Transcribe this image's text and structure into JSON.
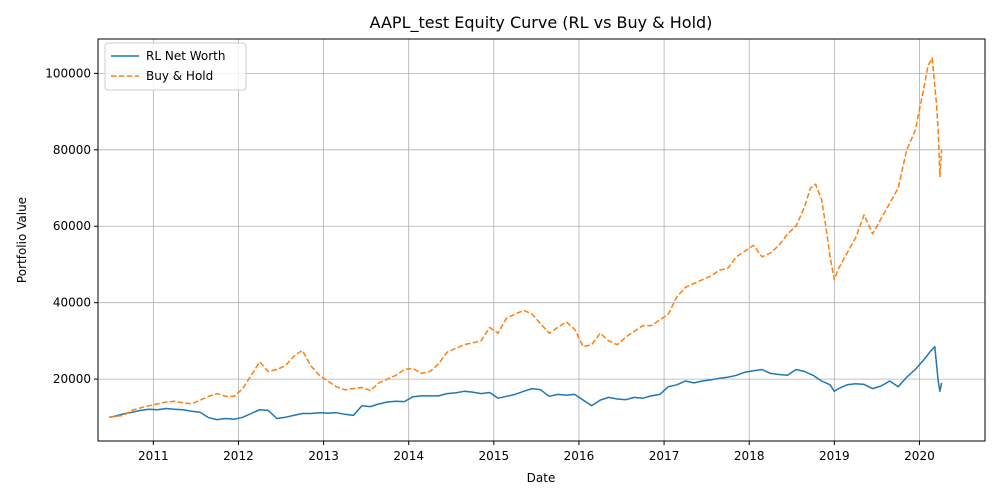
{
  "chart_data": {
    "type": "line",
    "title": "AAPL_test Equity Curve (RL vs Buy & Hold)",
    "xlabel": "Date",
    "ylabel": "Portfolio Value",
    "xlim": [
      2010.35,
      2020.77
    ],
    "ylim": [
      3800,
      109000
    ],
    "x_ticks": [
      2011,
      2012,
      2013,
      2014,
      2015,
      2016,
      2017,
      2018,
      2019,
      2020
    ],
    "x_tick_labels": [
      "2011",
      "2012",
      "2013",
      "2014",
      "2015",
      "2016",
      "2017",
      "2018",
      "2019",
      "2020"
    ],
    "y_ticks": [
      20000,
      40000,
      60000,
      80000,
      100000
    ],
    "y_tick_labels": [
      "20000",
      "40000",
      "60000",
      "80000",
      "100000"
    ],
    "grid": true,
    "legend_position": "top-left",
    "series": [
      {
        "name": "RL Net Worth",
        "color": "#1f77b4",
        "style": "solid",
        "x": [
          2010.48,
          2010.55,
          2010.65,
          2010.75,
          2010.85,
          2010.95,
          2011.05,
          2011.15,
          2011.25,
          2011.35,
          2011.45,
          2011.55,
          2011.65,
          2011.75,
          2011.85,
          2011.95,
          2012.05,
          2012.15,
          2012.25,
          2012.35,
          2012.45,
          2012.55,
          2012.65,
          2012.75,
          2012.85,
          2012.95,
          2013.05,
          2013.15,
          2013.25,
          2013.35,
          2013.45,
          2013.55,
          2013.65,
          2013.75,
          2013.85,
          2013.95,
          2014.05,
          2014.15,
          2014.25,
          2014.35,
          2014.45,
          2014.55,
          2014.65,
          2014.75,
          2014.85,
          2014.95,
          2015.05,
          2015.15,
          2015.25,
          2015.35,
          2015.45,
          2015.55,
          2015.65,
          2015.75,
          2015.85,
          2015.95,
          2016.05,
          2016.15,
          2016.25,
          2016.35,
          2016.45,
          2016.55,
          2016.65,
          2016.75,
          2016.85,
          2016.95,
          2017.05,
          2017.15,
          2017.25,
          2017.35,
          2017.45,
          2017.55,
          2017.65,
          2017.75,
          2017.85,
          2017.95,
          2018.05,
          2018.15,
          2018.25,
          2018.35,
          2018.45,
          2018.55,
          2018.65,
          2018.75,
          2018.85,
          2018.95,
          2019.0,
          2019.05,
          2019.15,
          2019.25,
          2019.35,
          2019.45,
          2019.55,
          2019.65,
          2019.75,
          2019.85,
          2019.95,
          2020.05,
          2020.12,
          2020.18,
          2020.2,
          2020.22,
          2020.24,
          2020.26
        ],
        "values": [
          10000,
          10300,
          10900,
          11300,
          11800,
          12100,
          12000,
          12300,
          12100,
          12000,
          11600,
          11300,
          9900,
          9400,
          9700,
          9500,
          10000,
          11000,
          12000,
          11800,
          9700,
          10000,
          10500,
          11000,
          11000,
          11200,
          11100,
          11200,
          10800,
          10500,
          13000,
          12800,
          13500,
          14000,
          14200,
          14100,
          15400,
          15600,
          15600,
          15600,
          16200,
          16400,
          16800,
          16600,
          16200,
          16500,
          15000,
          15500,
          16000,
          16800,
          17500,
          17200,
          15500,
          16000,
          15800,
          16000,
          14500,
          13000,
          14500,
          15200,
          14800,
          14600,
          15200,
          15000,
          15600,
          16000,
          18000,
          18500,
          19500,
          19000,
          19500,
          19800,
          20200,
          20500,
          21000,
          21800,
          22200,
          22500,
          21500,
          21200,
          21000,
          22500,
          22000,
          21000,
          19500,
          18500,
          16800,
          17500,
          18500,
          18800,
          18600,
          17500,
          18200,
          19500,
          18000,
          20500,
          22500,
          25000,
          27000,
          28500,
          24000,
          19500,
          16800,
          19000
        ]
      },
      {
        "name": "Buy & Hold",
        "color": "#ff7f0e",
        "style": "dashed",
        "x": [
          2010.48,
          2010.55,
          2010.65,
          2010.75,
          2010.85,
          2010.95,
          2011.05,
          2011.15,
          2011.25,
          2011.35,
          2011.45,
          2011.55,
          2011.65,
          2011.75,
          2011.85,
          2011.95,
          2012.05,
          2012.15,
          2012.25,
          2012.35,
          2012.45,
          2012.55,
          2012.65,
          2012.75,
          2012.85,
          2012.95,
          2013.05,
          2013.15,
          2013.25,
          2013.35,
          2013.45,
          2013.55,
          2013.65,
          2013.75,
          2013.85,
          2013.95,
          2014.05,
          2014.15,
          2014.25,
          2014.35,
          2014.45,
          2014.55,
          2014.65,
          2014.75,
          2014.85,
          2014.95,
          2015.05,
          2015.15,
          2015.25,
          2015.35,
          2015.45,
          2015.55,
          2015.65,
          2015.75,
          2015.85,
          2015.95,
          2016.05,
          2016.15,
          2016.25,
          2016.35,
          2016.45,
          2016.55,
          2016.65,
          2016.75,
          2016.85,
          2016.95,
          2017.05,
          2017.15,
          2017.25,
          2017.35,
          2017.45,
          2017.55,
          2017.65,
          2017.75,
          2017.85,
          2017.95,
          2018.05,
          2018.15,
          2018.25,
          2018.35,
          2018.45,
          2018.55,
          2018.65,
          2018.72,
          2018.78,
          2018.85,
          2018.9,
          2018.95,
          2019.0,
          2019.05,
          2019.15,
          2019.25,
          2019.35,
          2019.45,
          2019.55,
          2019.65,
          2019.75,
          2019.85,
          2019.95,
          2020.05,
          2020.1,
          2020.15,
          2020.2,
          2020.22,
          2020.24,
          2020.26
        ],
        "values": [
          10000,
          10200,
          10500,
          11800,
          12500,
          13000,
          13500,
          14000,
          14200,
          13800,
          13500,
          14500,
          15500,
          16200,
          15500,
          15500,
          17500,
          21000,
          24500,
          22000,
          22500,
          23500,
          26000,
          27500,
          23500,
          21000,
          19500,
          18000,
          17200,
          17500,
          17800,
          17000,
          19000,
          20000,
          21000,
          22500,
          22800,
          21500,
          22000,
          24000,
          27000,
          28000,
          29000,
          29500,
          30000,
          33500,
          32000,
          36000,
          37000,
          38000,
          37000,
          34500,
          32000,
          33500,
          35000,
          33000,
          28500,
          29000,
          32000,
          30000,
          29000,
          31000,
          32500,
          34000,
          34000,
          35500,
          37000,
          41500,
          44000,
          45000,
          46000,
          47000,
          48500,
          49000,
          52000,
          53500,
          55000,
          52000,
          53000,
          55000,
          58000,
          60000,
          65000,
          70000,
          71000,
          67000,
          60000,
          52000,
          46000,
          49000,
          53000,
          57000,
          63000,
          58000,
          62000,
          66000,
          70000,
          80000,
          85000,
          96000,
          102000,
          104000,
          92000,
          85000,
          73000,
          80000
        ]
      }
    ]
  }
}
